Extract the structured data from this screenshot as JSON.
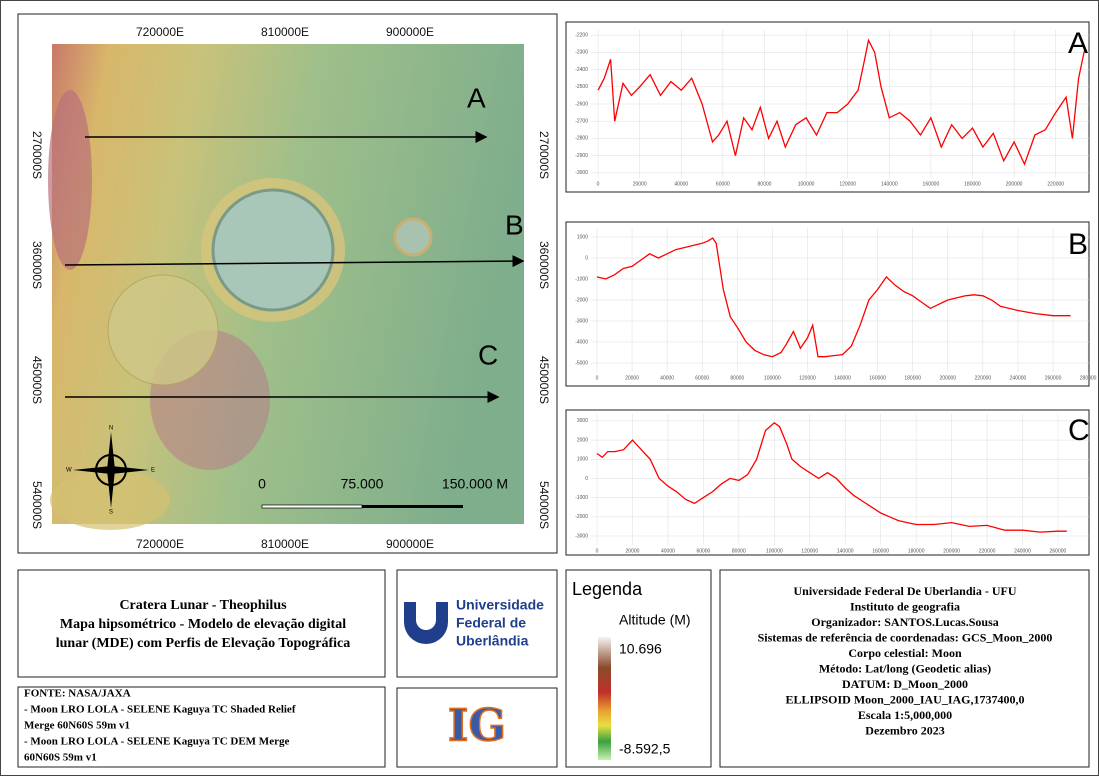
{
  "map": {
    "x_labels": [
      "720000E",
      "810000E",
      "900000E"
    ],
    "y_labels": [
      "270000S",
      "360000S",
      "450000S",
      "540000S"
    ],
    "scale_bar": [
      "0",
      "75.000",
      "150.000 M"
    ],
    "compass": [
      "N",
      "S",
      "E",
      "W"
    ]
  },
  "chart_data": [
    {
      "type": "line",
      "label": "A",
      "color": "#ff0000",
      "xlim": [
        -3400,
        236000
      ],
      "ylim": [
        -3030,
        -2170
      ],
      "xticks": [
        0,
        20000,
        40000,
        60000,
        80000,
        100000,
        120000,
        140000,
        160000,
        180000,
        200000,
        220000
      ],
      "yticks": [
        -2200,
        -2300,
        -2400,
        -2500,
        -2600,
        -2700,
        -2800,
        -2900,
        -3000
      ],
      "x": [
        0,
        3000,
        6000,
        8000,
        12000,
        16000,
        20000,
        25000,
        30000,
        35000,
        40000,
        45000,
        50000,
        55000,
        58000,
        62000,
        66000,
        70000,
        74000,
        78000,
        82000,
        86000,
        90000,
        95000,
        100000,
        105000,
        110000,
        115000,
        120000,
        125000,
        128000,
        130000,
        133000,
        136000,
        140000,
        145000,
        150000,
        155000,
        160000,
        165000,
        170000,
        175000,
        180000,
        185000,
        190000,
        195000,
        200000,
        205000,
        210000,
        215000,
        220000,
        225000,
        228000,
        231000,
        234000
      ],
      "values": [
        -2520,
        -2450,
        -2340,
        -2700,
        -2480,
        -2550,
        -2500,
        -2430,
        -2550,
        -2470,
        -2520,
        -2450,
        -2600,
        -2820,
        -2780,
        -2700,
        -2900,
        -2680,
        -2750,
        -2620,
        -2800,
        -2700,
        -2850,
        -2720,
        -2680,
        -2780,
        -2650,
        -2650,
        -2600,
        -2520,
        -2350,
        -2230,
        -2300,
        -2500,
        -2680,
        -2650,
        -2700,
        -2780,
        -2680,
        -2850,
        -2720,
        -2800,
        -2740,
        -2850,
        -2770,
        -2930,
        -2820,
        -2950,
        -2780,
        -2750,
        -2650,
        -2560,
        -2800,
        -2450,
        -2280
      ]
    },
    {
      "type": "line",
      "label": "B",
      "color": "#ff0000",
      "xlim": [
        -3400,
        280500
      ],
      "ylim": [
        -5430,
        1430
      ],
      "xticks": [
        0,
        20000,
        40000,
        60000,
        80000,
        100000,
        120000,
        140000,
        160000,
        180000,
        200000,
        220000,
        240000,
        260000,
        280000
      ],
      "yticks": [
        1000,
        0,
        -1000,
        -2000,
        -3000,
        -4000,
        -5000
      ],
      "x": [
        0,
        5000,
        10000,
        15000,
        20000,
        25000,
        30000,
        35000,
        40000,
        45000,
        50000,
        55000,
        60000,
        63000,
        66000,
        68000,
        72000,
        76000,
        80000,
        85000,
        90000,
        95000,
        100000,
        105000,
        108000,
        112000,
        116000,
        120000,
        123000,
        126000,
        130000,
        135000,
        140000,
        145000,
        150000,
        155000,
        160000,
        165000,
        170000,
        175000,
        180000,
        185000,
        190000,
        195000,
        200000,
        205000,
        210000,
        215000,
        220000,
        225000,
        230000,
        240000,
        250000,
        260000,
        270000
      ],
      "values": [
        -900,
        -1000,
        -800,
        -500,
        -400,
        -100,
        200,
        0,
        200,
        400,
        500,
        600,
        700,
        800,
        950,
        700,
        -1500,
        -2800,
        -3300,
        -4000,
        -4400,
        -4600,
        -4700,
        -4500,
        -4100,
        -3500,
        -4300,
        -3800,
        -3200,
        -4700,
        -4700,
        -4650,
        -4600,
        -4200,
        -3200,
        -2000,
        -1500,
        -900,
        -1300,
        -1600,
        -1800,
        -2100,
        -2400,
        -2200,
        -2000,
        -1900,
        -1800,
        -1750,
        -1800,
        -2000,
        -2300,
        -2500,
        -2650,
        -2750,
        -2750
      ]
    },
    {
      "type": "line",
      "label": "C",
      "color": "#ff0000",
      "xlim": [
        -3400,
        277500
      ],
      "ylim": [
        -3470,
        3360
      ],
      "xticks": [
        0,
        20000,
        40000,
        60000,
        80000,
        100000,
        120000,
        140000,
        160000,
        180000,
        200000,
        220000,
        240000,
        260000
      ],
      "yticks": [
        3000,
        2000,
        1000,
        0,
        -1000,
        -2000,
        -3000
      ],
      "x": [
        0,
        3000,
        6000,
        10000,
        15000,
        20000,
        25000,
        30000,
        35000,
        40000,
        45000,
        50000,
        55000,
        60000,
        65000,
        70000,
        75000,
        80000,
        85000,
        90000,
        95000,
        100000,
        103000,
        107000,
        110000,
        115000,
        120000,
        125000,
        130000,
        135000,
        140000,
        145000,
        150000,
        155000,
        160000,
        165000,
        170000,
        175000,
        180000,
        190000,
        200000,
        210000,
        220000,
        230000,
        240000,
        250000,
        260000,
        265000
      ],
      "values": [
        1300,
        1100,
        1400,
        1400,
        1500,
        2000,
        1500,
        1000,
        0,
        -400,
        -700,
        -1100,
        -1300,
        -1000,
        -700,
        -300,
        0,
        -100,
        200,
        1000,
        2500,
        2900,
        2700,
        1800,
        1000,
        600,
        300,
        0,
        300,
        0,
        -500,
        -900,
        -1200,
        -1500,
        -1800,
        -2000,
        -2200,
        -2300,
        -2400,
        -2400,
        -2300,
        -2500,
        -2450,
        -2700,
        -2700,
        -2800,
        -2750,
        -2750
      ]
    }
  ],
  "title": [
    "Cratera Lunar - Theophilus",
    "Mapa hipsométrico - Modelo de elevação digital",
    "lunar (MDE) com Perfis de Elevação Topográfica"
  ],
  "logo": {
    "university": [
      "Universidade",
      "Federal de",
      "Uberlândia"
    ],
    "ig": "IG"
  },
  "legend": {
    "title": "Legenda",
    "subtitle": "Altitude (M)",
    "max": "10.696",
    "min": "-8.592,5"
  },
  "source": [
    "FONTE: NASA/JAXA",
    "- Moon LRO LOLA - SELENE Kaguya TC Shaded Relief",
    "Merge 60N60S 59m v1",
    "- Moon LRO LOLA - SELENE Kaguya TC DEM Merge",
    "60N60S 59m v1"
  ],
  "info": [
    "Universidade Federal De Uberlandia - UFU",
    "Instituto de geografia",
    "Organizador: SANTOS.Lucas.Sousa",
    "Sistemas de referência de coordenadas: GCS_Moon_2000",
    "Corpo celestial: Moon",
    "Método: Lat/long (Geodetic alias)",
    "DATUM: D_Moon_2000",
    "ELLIPSOID Moon_2000_IAU_IAG,1737400,0",
    "Escala 1:5,000,000",
    "Dezembro 2023"
  ]
}
